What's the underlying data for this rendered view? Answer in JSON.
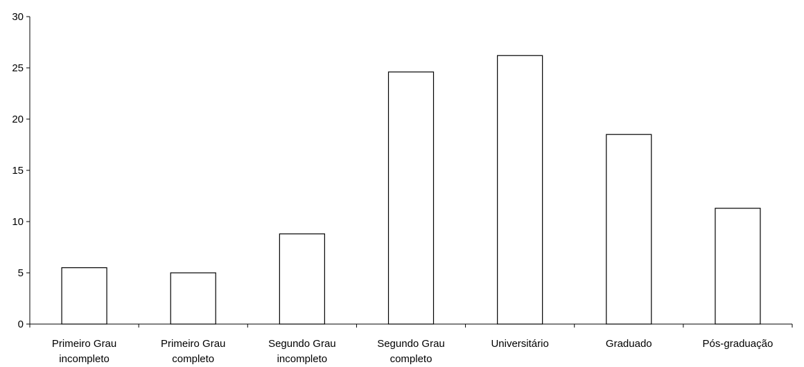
{
  "chart_data": {
    "type": "bar",
    "title": "",
    "xlabel": "",
    "ylabel": "",
    "categories": [
      [
        "Primeiro Grau",
        "incompleto"
      ],
      [
        "Primeiro Grau",
        "completo"
      ],
      [
        "Segundo Grau",
        "incompleto"
      ],
      [
        "Segundo Grau",
        "completo"
      ],
      [
        "Universitário"
      ],
      [
        "Graduado"
      ],
      [
        "Pós-graduação"
      ]
    ],
    "values": [
      5.5,
      5.0,
      8.8,
      24.6,
      26.2,
      18.5,
      11.3
    ],
    "ylim": [
      0,
      30
    ],
    "yticks": [
      "0",
      "5",
      "10",
      "15",
      "20",
      "25",
      "30"
    ],
    "grid": false,
    "legend": "none",
    "bar_fill": "#ffffff",
    "bar_stroke": "#000000"
  }
}
